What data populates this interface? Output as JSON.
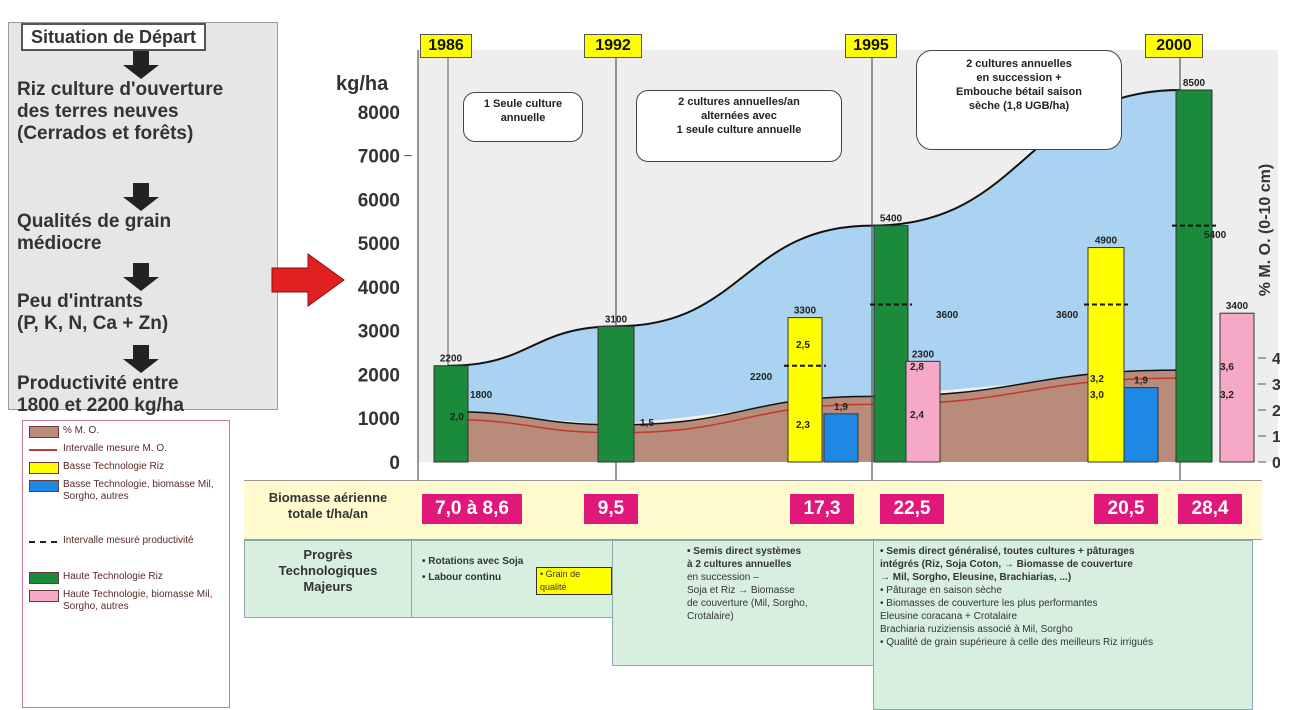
{
  "flow": {
    "start": "Situation de Départ",
    "steps": [
      [
        "Riz culture d'ouverture",
        "des terres neuves",
        "(Cerrados et forêts)"
      ],
      [
        "Qualités de grain",
        "médiocre"
      ],
      [
        "Peu d'intrants",
        "(P, K, N, Ca + Zn)"
      ],
      [
        "Productivité entre",
        "1800 et 2200 kg/ha"
      ]
    ]
  },
  "legend": [
    {
      "label": "% M. O.",
      "color": "#b98b7a",
      "kind": "box"
    },
    {
      "label": "Intervalle mesure M. O.",
      "color": "#c0392b",
      "kind": "line"
    },
    {
      "label": "Basse Technologie Riz",
      "color": "#ffff00",
      "kind": "box"
    },
    {
      "label": "Basse Technologie, biomasse Mil, Sorgho, autres",
      "color": "#1e88e5",
      "kind": "box"
    },
    {
      "label": "Intervalle mesuré productivité",
      "color": "#222222",
      "kind": "dash"
    },
    {
      "label": "Haute Technologie Riz",
      "color": "#1b8a3a",
      "kind": "box"
    },
    {
      "label": "Haute Technologie, biomasse Mil, Sorgho, autres",
      "color": "#f6a9c7",
      "kind": "box"
    }
  ],
  "years": [
    "1986",
    "1992",
    "1995",
    "2000"
  ],
  "phases": [
    [
      "1 Seule culture",
      "annuelle"
    ],
    [
      "2 cultures annuelles/an",
      "alternées avec",
      "1 seule culture annuelle"
    ],
    [
      "2 cultures annuelles",
      "en succession +",
      "Embouche bétail saison",
      "sèche (1,8 UGB/ha)"
    ]
  ],
  "biomass": {
    "label": [
      "Biomasse aérienne",
      "totale t/ha/an"
    ],
    "values": [
      "7,0 à 8,6",
      "9,5",
      "17,3",
      "22,5",
      "20,5",
      "28,4"
    ]
  },
  "progress": {
    "label": [
      "Progrès",
      "Technologiques",
      "Majeurs"
    ],
    "col1": [
      "• Rotations avec Soja",
      "• Labour continu"
    ],
    "grain_box": "• Grain de qualité",
    "col2": [
      "• Semis direct systèmes",
      "à 2 cultures annuelles",
      "en succession –",
      "Soja et Riz → Biomasse",
      "de couverture (Mil, Sorgho,",
      "Crotalaire)"
    ],
    "col3": [
      "• Semis direct généralisé, toutes cultures + pâturages",
      "intégrés (Riz, Soja Coton, → Biomasse de couverture",
      "→ Mil, Sorgho, Eleusine, Brachiarias, ...)",
      "• Pâturage en saison sèche",
      "• Biomasses de couverture les plus performantes",
      "Eleusine coracana + Crotalaire",
      "Brachiaria ruziziensis associé à Mil, Sorgho",
      "• Qualité de grain supérieure à celle des meilleurs Riz irrigués"
    ]
  },
  "chart_data": {
    "type": "bar",
    "ylabel": "kg/ha",
    "y2label": "% M. O. (0-10 cm)",
    "ylim": [
      0,
      8500
    ],
    "yticks": [
      0,
      1000,
      2000,
      3000,
      4000,
      5000,
      6000,
      7000,
      8000
    ],
    "y2ticks": [
      "0",
      "1",
      "2",
      "3",
      "4"
    ],
    "colors": {
      "high_rice": "#1b8a3a",
      "low_rice": "#ffff00",
      "low_biomass": "#1e88e5",
      "high_biomass": "#f6a9c7",
      "om": "#b98b7a",
      "productivity_area": "#a9d3f0"
    },
    "bars": [
      {
        "group": "1986",
        "series": "Haute Technologie Riz",
        "value": 2200,
        "label": "2200"
      },
      {
        "group": "1992",
        "series": "Haute Technologie Riz",
        "value": 3100,
        "label": "3100"
      },
      {
        "group": "1992",
        "series": "Basse Technologie Riz",
        "value": 3300,
        "label": "3300"
      },
      {
        "group": "1992",
        "series": "Basse Technologie, biomasse Mil, Sorgho, autres",
        "value": 1100,
        "label": "1,9"
      },
      {
        "group": "1995",
        "series": "Haute Technologie Riz",
        "value": 5400,
        "label": "5400"
      },
      {
        "group": "1995",
        "series": "Haute Technologie, biomasse Mil, Sorgho, autres",
        "value": 2300,
        "label": "2300"
      },
      {
        "group": "1995",
        "series": "Basse Technologie Riz",
        "value": 4900,
        "label": "4900"
      },
      {
        "group": "1995",
        "series": "Basse Technologie, biomasse Mil, Sorgho, autres",
        "value": 1700,
        "label": "1,9"
      },
      {
        "group": "2000",
        "series": "Haute Technologie Riz",
        "value": 8500,
        "label": "8500"
      },
      {
        "group": "2000",
        "series": "Haute Technologie, biomasse Mil, Sorgho, autres",
        "value": 3400,
        "label": "3400"
      }
    ],
    "productivity_curve": {
      "x": [
        "1986",
        "1992",
        "1995",
        "2000"
      ],
      "y": [
        2200,
        3100,
        5400,
        8500
      ]
    },
    "om_curve": {
      "x": [
        "1986",
        "1992",
        "1995",
        "2000"
      ],
      "values": [
        2.0,
        1.5,
        2.4,
        3.2
      ]
    },
    "value_labels": [
      "1800",
      "2,0",
      "1,5",
      "2200",
      "2,5",
      "2,3",
      "2,8",
      "2,4",
      "3600",
      "3600",
      "3,2",
      "3,0",
      "5400",
      "3,6",
      "3,2"
    ],
    "productivity_intervals": [
      {
        "group": "1992",
        "low": 2200,
        "high": 3300
      },
      {
        "group": "1995",
        "low": 3600,
        "high": 5400
      },
      {
        "group": "1995b",
        "low": 3600,
        "high": 4900
      },
      {
        "group": "2000",
        "low": 5400,
        "high": 8500
      }
    ]
  }
}
